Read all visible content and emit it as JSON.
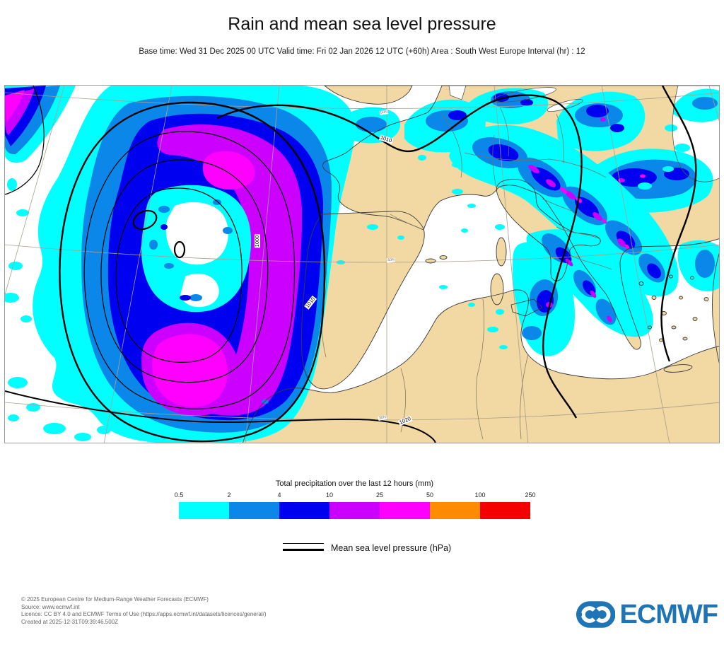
{
  "title": "Rain and mean sea level pressure",
  "subtitle": "Base time: Wed 31 Dec 2025 00 UTC Valid time: Fri 02 Jan 2026 12 UTC (+60h) Area : South West Europe Interval (hr) : 12",
  "map": {
    "contour_labels": [
      "1010",
      "1000",
      "1010",
      "1020"
    ],
    "graticule_labels": [
      "50N",
      "40N",
      "30N"
    ]
  },
  "legend": {
    "precip_title": "Total precipitation over the last 12 hours (mm)",
    "ticks": [
      "0.5",
      "2",
      "4",
      "10",
      "25",
      "50",
      "100",
      "250"
    ],
    "colors": [
      "#00ffff",
      "#0a87e8",
      "#0000f0",
      "#cc00ff",
      "#ff00ff",
      "#ff8c00",
      "#f40000"
    ],
    "mslp_label": "Mean sea level pressure (hPa)"
  },
  "colors": {
    "land": "#f2d8a2",
    "sea": "#ffffff",
    "precip_cyan": "#00ffff",
    "precip_blue": "#0a87e8",
    "precip_dark_blue": "#0000f0",
    "precip_purple": "#cc00ff",
    "precip_magenta": "#ff00ff",
    "logo_blue": "#1e74b5"
  },
  "footer": {
    "lines": [
      "© 2025 European Centre for Medium-Range Weather Forecasts (ECMWF)",
      "Source: www.ecmwf.int",
      "Licence: CC BY 4.0 and ECMWF Terms of Use (https://apps.ecmwf.int/datasets/licences/general/)",
      "Created at 2025-12-31T09:39:46.500Z"
    ],
    "logo_text": "ECMWF"
  }
}
